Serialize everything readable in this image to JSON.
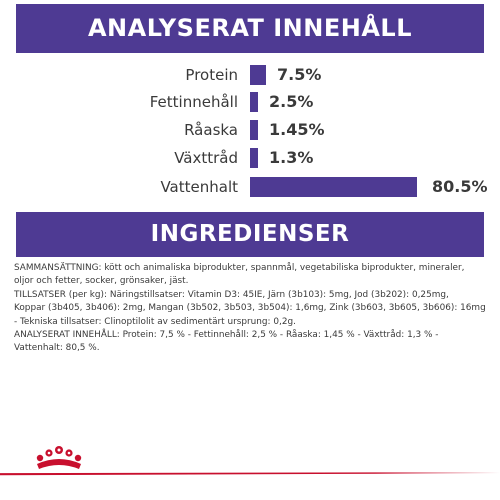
{
  "analysis": {
    "title": "ANALYSERAT INNEHÅLL",
    "bar_color": "#4e3a93",
    "rows": [
      {
        "label": "Protein",
        "value": "7.5%",
        "percent": 7.5
      },
      {
        "label": "Fettinnehåll",
        "value": "2.5%",
        "percent": 2.5
      },
      {
        "label": "Råaska",
        "value": "1.45%",
        "percent": 1.45
      },
      {
        "label": "Växttråd",
        "value": "1.3%",
        "percent": 1.3
      },
      {
        "label": "Vattenhalt",
        "value": "80.5%",
        "percent": 80.5
      }
    ]
  },
  "ingredients": {
    "title": "INGREDIENSER",
    "lines": [
      "SAMMANSÄTTNING: kött och animaliska biprodukter, spannmål, vegetabiliska biprodukter, mineraler,",
      "oljor och fetter, socker, grönsaker, jäst.",
      "TILLSATSER (per kg): Näringstillsatser: Vitamin D3: 45IE, Järn (3b103): 5mg, Jod (3b202): 0,25mg,",
      "Koppar (3b405, 3b406): 2mg, Mangan (3b502, 3b503, 3b504): 1,6mg, Zink (3b603, 3b605, 3b606): 16mg",
      "- Tekniska tillsatser: Clinoptilolit av sedimentärt ursprung: 0,2g.",
      "ANALYSERAT INNEHÅLL: Protein: 7,5 % - Fettinnehåll: 2,5 % - Råaska: 1,45 % - Växttråd: 1,3 % -",
      "Vattenhalt: 80,5 %."
    ]
  },
  "brand": {
    "logo_icon": "crown-logo-icon",
    "accent_color": "#c8102e"
  }
}
